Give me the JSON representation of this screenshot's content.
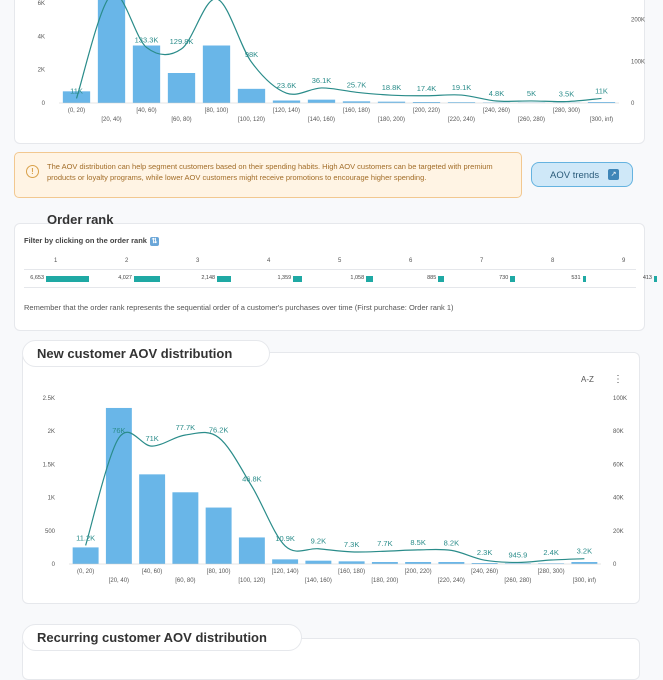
{
  "top_chart": {
    "type": "bar",
    "y_left_ticks": [
      "6K",
      "4K",
      "2K",
      "0"
    ],
    "y_right_ticks": [
      "200K",
      "100K",
      "0"
    ],
    "categories_row1": [
      "(0, 20)",
      "[40, 60)",
      "[80, 100)",
      "[120, 140)",
      "[160, 180)",
      "[200, 220)",
      "[240, 260)",
      "[280, 300)"
    ],
    "categories_row2": [
      "[20, 40)",
      "[60, 80)",
      "[100, 120)",
      "[140, 160)",
      "[180, 200)",
      "[220, 240)",
      "[260, 280)",
      "[300, inf)"
    ],
    "bar_values": [
      700,
      6500,
      3450,
      1800,
      3450,
      850,
      150,
      200,
      100,
      80,
      60,
      50,
      30,
      20,
      20,
      60
    ],
    "line_values": [
      11000,
      260000,
      133300,
      129800,
      250000,
      98000,
      23600,
      36100,
      25700,
      18800,
      17400,
      19100,
      4800,
      5000,
      3500,
      11000
    ],
    "line_labels": [
      "11K",
      "",
      "133.3K",
      "129.8K",
      "",
      "98K",
      "23.6K",
      "36.1K",
      "25.7K",
      "18.8K",
      "17.4K",
      "19.1K",
      "4.8K",
      "5K",
      "3.5K",
      "11K"
    ]
  },
  "insight": {
    "text": "The AOV distribution can help segment customers based on their spending habits. High AOV customers can be targeted with premium products or loyalty programs, while lower AOV customers might receive promotions to encourage higher spending.",
    "icon": "info-icon",
    "button_label": "AOV trends"
  },
  "order_rank": {
    "title": "Order rank",
    "filter_label": "Filter by clicking on the order rank",
    "ranks": [
      {
        "rank": "1",
        "value": "6,653",
        "count": 6653
      },
      {
        "rank": "2",
        "value": "4,027",
        "count": 4027
      },
      {
        "rank": "3",
        "value": "2,148",
        "count": 2148
      },
      {
        "rank": "4",
        "value": "1,359",
        "count": 1359
      },
      {
        "rank": "5",
        "value": "1,058",
        "count": 1058
      },
      {
        "rank": "6",
        "value": "885",
        "count": 885
      },
      {
        "rank": "7",
        "value": "730",
        "count": 730
      },
      {
        "rank": "8",
        "value": "531",
        "count": 531
      },
      {
        "rank": "9",
        "value": "413",
        "count": 413
      }
    ],
    "note": "Remember that the order rank represents the sequential order of a customer's purchases over time (First purchase: Order rank 1)"
  },
  "new_customer": {
    "title": "New customer AOV distribution",
    "y_left_ticks": [
      "2.5K",
      "2K",
      "1.5K",
      "1K",
      "500",
      "0"
    ],
    "y_right_ticks": [
      "100K",
      "80K",
      "60K",
      "40K",
      "20K",
      "0"
    ],
    "categories_row1": [
      "(0, 20)",
      "[40, 60)",
      "[80, 100)",
      "[120, 140)",
      "[160, 180)",
      "[200, 220)",
      "[240, 260)",
      "[280, 300)"
    ],
    "categories_row2": [
      "[20, 40)",
      "[60, 80)",
      "[100, 120)",
      "[140, 160)",
      "[180, 200)",
      "[220, 240)",
      "[260, 280)",
      "[300, inf)"
    ],
    "bar_values": [
      250,
      2350,
      1350,
      1080,
      850,
      400,
      70,
      50,
      40,
      30,
      30,
      30,
      15,
      10,
      10,
      30
    ],
    "line_values": [
      11200,
      76000,
      71000,
      77700,
      76200,
      46800,
      10900,
      9200,
      7300,
      7700,
      8500,
      8200,
      2300,
      945.9,
      2400,
      3200
    ],
    "line_labels": [
      "11.2K",
      "76K",
      "71K",
      "77.7K",
      "76.2K",
      "46.8K",
      "10.9K",
      "9.2K",
      "7.3K",
      "7.7K",
      "8.5K",
      "8.2K",
      "2.3K",
      "945.9",
      "2.4K",
      "3.2K"
    ],
    "toolbar_sort": "A-Z",
    "toolbar_more": "⋮"
  },
  "recurring": {
    "title": "Recurring customer AOV distribution"
  },
  "colors": {
    "bar": "#69b6e8",
    "line": "#2a8c8a",
    "accent": "#1fa9a4"
  }
}
